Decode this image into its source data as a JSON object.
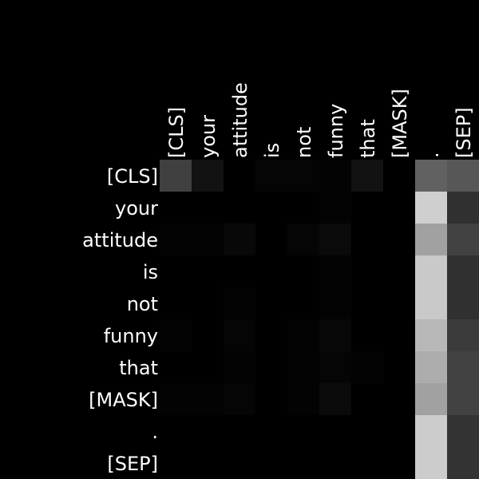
{
  "chart_data": {
    "type": "heatmap",
    "title": "",
    "xlabel": "",
    "ylabel": "",
    "x_tokens": [
      "[CLS]",
      "your",
      "attitude",
      "is",
      "not",
      "funny",
      "that",
      "[MASK]",
      ".",
      "[SEP]"
    ],
    "y_tokens": [
      "[CLS]",
      "your",
      "attitude",
      "is",
      "not",
      "funny",
      "that",
      "[MASK]",
      ".",
      "[SEP]"
    ],
    "value_range": [
      0,
      1
    ],
    "colormap": "grayscale-black-to-white",
    "values": [
      [
        0.25,
        0.07,
        0.0,
        0.02,
        0.02,
        0.01,
        0.07,
        0.0,
        0.38,
        0.34
      ],
      [
        0.0,
        0.0,
        0.0,
        0.0,
        0.0,
        0.01,
        0.0,
        0.0,
        0.81,
        0.19
      ],
      [
        0.01,
        0.01,
        0.03,
        0.0,
        0.02,
        0.04,
        0.0,
        0.0,
        0.63,
        0.26
      ],
      [
        0.0,
        0.0,
        0.0,
        0.0,
        0.0,
        0.01,
        0.0,
        0.0,
        0.79,
        0.19
      ],
      [
        0.0,
        0.0,
        0.01,
        0.0,
        0.0,
        0.01,
        0.0,
        0.0,
        0.79,
        0.19
      ],
      [
        0.01,
        0.0,
        0.02,
        0.0,
        0.01,
        0.03,
        0.0,
        0.0,
        0.72,
        0.23
      ],
      [
        0.0,
        0.0,
        0.01,
        0.0,
        0.01,
        0.02,
        0.01,
        0.0,
        0.68,
        0.26
      ],
      [
        0.01,
        0.01,
        0.02,
        0.0,
        0.01,
        0.04,
        0.0,
        0.0,
        0.63,
        0.26
      ],
      [
        0.0,
        0.0,
        0.0,
        0.0,
        0.0,
        0.0,
        0.0,
        0.0,
        0.8,
        0.2
      ],
      [
        0.0,
        0.0,
        0.0,
        0.0,
        0.0,
        0.0,
        0.0,
        0.0,
        0.8,
        0.2
      ]
    ]
  }
}
